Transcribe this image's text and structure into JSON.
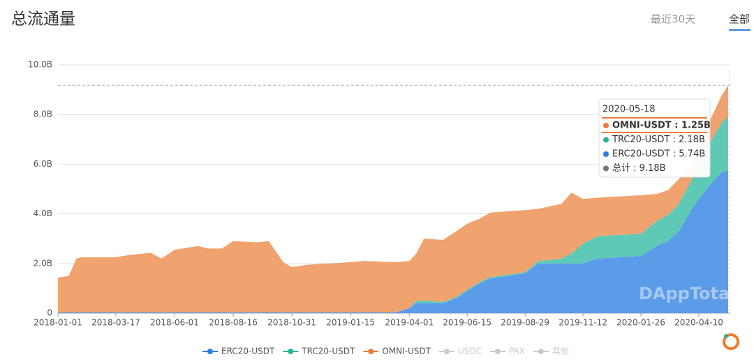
{
  "header": {
    "title": "总流通量",
    "tabs": [
      "最近30天",
      "全部"
    ],
    "active_tab": 1
  },
  "chart_data": {
    "type": "stacked-area",
    "x": [
      "2018-01-01",
      "2018-01-15",
      "2018-01-25",
      "2018-02-01",
      "2018-03-17",
      "2018-04-01",
      "2018-05-01",
      "2018-05-15",
      "2018-06-01",
      "2018-07-01",
      "2018-07-15",
      "2018-08-01",
      "2018-08-16",
      "2018-09-15",
      "2018-10-01",
      "2018-10-20",
      "2018-10-31",
      "2018-11-20",
      "2019-01-15",
      "2019-02-01",
      "2019-03-15",
      "2019-04-01",
      "2019-04-10",
      "2019-04-20",
      "2019-05-15",
      "2019-06-01",
      "2019-06-15",
      "2019-07-01",
      "2019-07-15",
      "2019-08-29",
      "2019-09-15",
      "2019-10-15",
      "2019-10-28",
      "2019-11-12",
      "2019-12-01",
      "2020-01-26",
      "2020-02-15",
      "2020-03-01",
      "2020-03-15",
      "2020-04-01",
      "2020-04-10",
      "2020-04-25",
      "2020-05-10",
      "2020-05-18"
    ],
    "series": [
      {
        "name": "ERC20-USDT",
        "color": "#5b9ce8",
        "line_color": "#2f7fe0",
        "values": [
          0.03,
          0.03,
          0.03,
          0.03,
          0.03,
          0.03,
          0.03,
          0.03,
          0.03,
          0.03,
          0.03,
          0.03,
          0.03,
          0.03,
          0.03,
          0.03,
          0.03,
          0.03,
          0.03,
          0.03,
          0.03,
          0.2,
          0.4,
          0.4,
          0.4,
          0.6,
          0.9,
          1.2,
          1.4,
          1.6,
          2.0,
          2.0,
          2.0,
          2.0,
          2.2,
          2.3,
          2.7,
          2.9,
          3.3,
          4.2,
          4.6,
          5.2,
          5.7,
          5.74
        ]
      },
      {
        "name": "TRC20-USDT",
        "color": "#5ecab5",
        "line_color": "#2bb39a",
        "values": [
          0,
          0,
          0,
          0,
          0,
          0,
          0,
          0,
          0,
          0,
          0,
          0,
          0,
          0,
          0,
          0,
          0,
          0,
          0,
          0,
          0,
          0,
          0.1,
          0.1,
          0.05,
          0.05,
          0.05,
          0.05,
          0.05,
          0.05,
          0.1,
          0.2,
          0.4,
          0.8,
          0.9,
          0.9,
          1.0,
          1.05,
          1.1,
          1.2,
          1.4,
          1.7,
          2.0,
          2.18
        ]
      },
      {
        "name": "OMNI-USDT",
        "color": "#f0a36e",
        "line_color": "#ee7a3b",
        "values": [
          1.4,
          1.47,
          2.17,
          2.22,
          2.22,
          2.3,
          2.4,
          2.17,
          2.52,
          2.67,
          2.57,
          2.57,
          2.87,
          2.82,
          2.87,
          2.02,
          1.82,
          1.92,
          2.02,
          2.07,
          2.02,
          1.9,
          1.9,
          2.5,
          2.5,
          2.65,
          2.65,
          2.55,
          2.6,
          2.5,
          2.1,
          2.2,
          2.45,
          1.8,
          1.55,
          1.55,
          1.1,
          1.0,
          1.0,
          0.6,
          0.5,
          0.9,
          1.1,
          1.25
        ]
      }
    ],
    "legend_disabled": [
      "USDC",
      "PAX",
      "其他"
    ],
    "xlim": [
      "2018-01-01",
      "2020-05-18"
    ],
    "xticks": [
      "2018-01-01",
      "2018-03-17",
      "2018-06-01",
      "2018-08-16",
      "2018-10-31",
      "2019-01-15",
      "2019-04-01",
      "2019-06-15",
      "2019-08-29",
      "2019-11-12",
      "2020-01-26",
      "2020-04-10"
    ],
    "ylim": [
      0,
      10
    ],
    "yticks": [
      0,
      {
        "value": 2,
        "label": "2.0B"
      },
      {
        "value": 4,
        "label": "4.0B"
      },
      {
        "value": 6,
        "label": "6.0B"
      },
      {
        "value": 8,
        "label": "8.0B"
      },
      {
        "value": 10,
        "label": "10.0B"
      }
    ],
    "grid": true,
    "reference_line": 9.18,
    "watermark": "DAppTotal",
    "tooltip": {
      "date": "2020-05-18",
      "items": [
        "OMNI-USDT : 1.25B",
        "TRC20-USDT : 2.18B",
        "ERC20-USDT : 5.74B",
        "总计 : 9.18B"
      ],
      "colors": [
        "#ee7a3b",
        "#2bb39a",
        "#2f7fe0",
        "#777777"
      ]
    }
  }
}
